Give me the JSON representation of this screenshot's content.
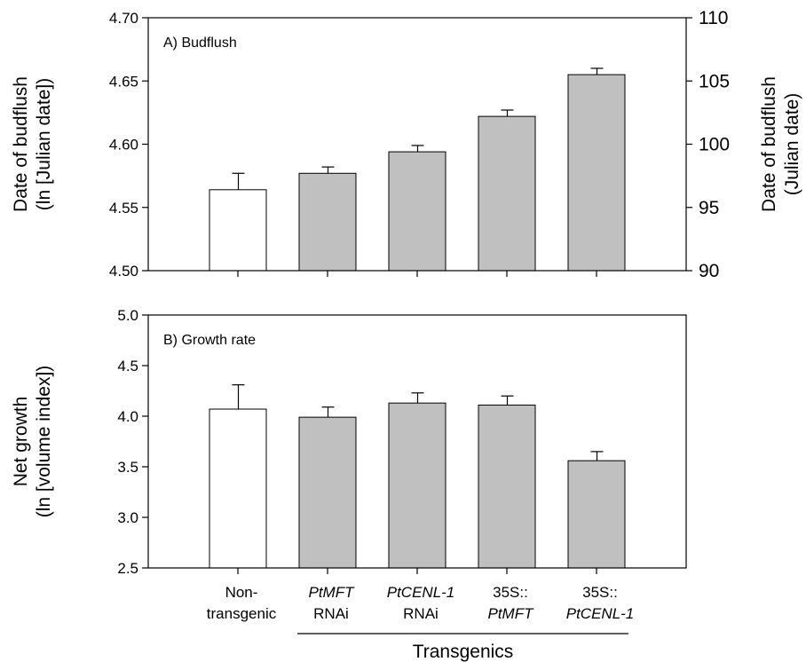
{
  "chart_data": [
    {
      "type": "bar",
      "panel_label": "A) Budflush",
      "ylabel": "Date of budflush",
      "ylabel_line2": "(ln [Julian date])",
      "ylim": [
        4.5,
        4.7
      ],
      "yticks": [
        "4.50",
        "4.55",
        "4.60",
        "4.65",
        "4.70"
      ],
      "right_axis": {
        "ylabel": "Date of budflush",
        "ylabel_line2": "(Julian date)",
        "ylim": [
          90,
          110
        ],
        "yticks": [
          "90",
          "95",
          "100",
          "105",
          "110"
        ]
      },
      "values": [
        4.564,
        4.577,
        4.594,
        4.622,
        4.655
      ],
      "error": [
        0.013,
        0.005,
        0.005,
        0.005,
        0.005
      ],
      "bar_colors": [
        "#ffffff",
        "#c0c0c0",
        "#c0c0c0",
        "#c0c0c0",
        "#c0c0c0"
      ]
    },
    {
      "type": "bar",
      "panel_label": "B) Growth rate",
      "ylabel": "Net growth",
      "ylabel_line2": "(ln [volume index])",
      "ylim": [
        2.5,
        5.0
      ],
      "yticks": [
        "2.5",
        "3.0",
        "3.5",
        "4.0",
        "4.5",
        "5.0"
      ],
      "values": [
        4.07,
        3.99,
        4.13,
        4.11,
        3.56
      ],
      "error": [
        0.24,
        0.1,
        0.1,
        0.09,
        0.09
      ],
      "bar_colors": [
        "#ffffff",
        "#c0c0c0",
        "#c0c0c0",
        "#c0c0c0",
        "#c0c0c0"
      ]
    }
  ],
  "categories": [
    {
      "line1": "Non-",
      "line2": "transgenic",
      "line1_italic": false,
      "line2_italic": false
    },
    {
      "line1": "PtMFT",
      "line2": "RNAi",
      "line1_italic": true,
      "line2_italic": false
    },
    {
      "line1": "PtCENL-1",
      "line2": "RNAi",
      "line1_italic": true,
      "line2_italic": false
    },
    {
      "line1": "35S::",
      "line2": "PtMFT",
      "line1_italic": false,
      "line2_italic": true
    },
    {
      "line1": "35S::",
      "line2": "PtCENL-1",
      "line1_italic": false,
      "line2_italic": true
    }
  ],
  "group_label": "Transgenics"
}
